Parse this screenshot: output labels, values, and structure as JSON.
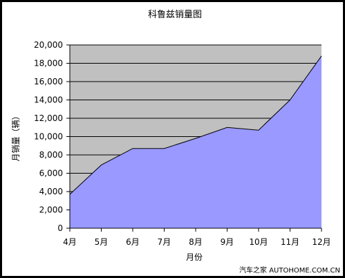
{
  "chart_data": {
    "type": "area",
    "title": "科鲁兹销量图",
    "xlabel": "月份",
    "ylabel": "月销量（辆）",
    "categories": [
      "4月",
      "5月",
      "6月",
      "7月",
      "8月",
      "9月",
      "10月",
      "11月",
      "12月"
    ],
    "series": [
      {
        "values": [
          3700,
          6900,
          8700,
          8700,
          9800,
          11000,
          10700,
          14000,
          18800
        ]
      }
    ],
    "ylim": [
      0,
      20000
    ],
    "yticks": [
      "0",
      "2,000",
      "4,000",
      "6,000",
      "8,000",
      "10,000",
      "12,000",
      "14,000",
      "16,000",
      "18,000",
      "20,000"
    ],
    "grid": true,
    "colors": {
      "plot_background": "#c0c0c0",
      "area_fill": "#9999ff",
      "line": "#000000",
      "gridline": "#000000"
    }
  },
  "watermark": "汽车之家 AUTOHOME.COM.CN"
}
